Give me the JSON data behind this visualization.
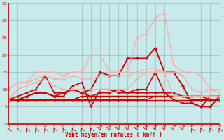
{
  "xlabel": "Vent moyen/en rafales ( km/h )",
  "xlim": [
    0,
    23
  ],
  "ylim": [
    0,
    35
  ],
  "yticks": [
    0,
    5,
    10,
    15,
    20,
    25,
    30,
    35
  ],
  "xticks": [
    0,
    1,
    2,
    3,
    4,
    5,
    6,
    7,
    8,
    9,
    10,
    11,
    12,
    13,
    14,
    15,
    16,
    17,
    18,
    19,
    20,
    21,
    22,
    23
  ],
  "bg_color": "#c8eaea",
  "grid_color": "#a0b8b8",
  "series": [
    {
      "y": [
        7,
        7,
        7,
        7,
        7,
        7,
        7,
        7,
        7,
        7,
        7,
        7,
        7,
        7,
        7,
        7,
        7,
        7,
        7,
        7,
        7,
        7,
        7,
        7
      ],
      "color": "#cc0000",
      "lw": 1.0,
      "marker": "D",
      "ms": 1.5
    },
    {
      "y": [
        7,
        7,
        7,
        7,
        7,
        7,
        7,
        7,
        7,
        7,
        7,
        7,
        7,
        7,
        7,
        7,
        8,
        8,
        8,
        8,
        7,
        7,
        7,
        7
      ],
      "color": "#cc0000",
      "lw": 1.0,
      "marker": "D",
      "ms": 1.5
    },
    {
      "y": [
        7,
        7,
        7,
        7,
        7,
        7,
        7,
        7,
        8,
        8,
        8,
        8,
        8,
        8,
        8,
        8,
        8,
        8,
        8,
        8,
        8,
        8,
        7,
        7
      ],
      "color": "#cc0000",
      "lw": 1.2,
      "marker": "^",
      "ms": 1.8
    },
    {
      "y": [
        7,
        7,
        8,
        9,
        9,
        8,
        8,
        11,
        12,
        5,
        10,
        10,
        9,
        9,
        9,
        9,
        9,
        9,
        9,
        8,
        8,
        8,
        8,
        8
      ],
      "color": "#cc0000",
      "lw": 1.2,
      "marker": "^",
      "ms": 2.0
    },
    {
      "y": [
        7,
        8,
        9,
        10,
        14,
        9,
        9,
        10,
        9,
        8,
        9,
        9,
        10,
        9,
        10,
        10,
        15,
        9,
        7,
        6,
        6,
        5,
        8,
        8
      ],
      "color": "#cc0000",
      "lw": 1.2,
      "marker": "D",
      "ms": 2.0
    },
    {
      "y": [
        7,
        7,
        8,
        9,
        9,
        8,
        9,
        10,
        9,
        10,
        15,
        14,
        14,
        19,
        19,
        19,
        22,
        15,
        15,
        11,
        6,
        5,
        5,
        8
      ],
      "color": "#cc0000",
      "lw": 1.4,
      "marker": "D",
      "ms": 2.5
    },
    {
      "y": [
        7,
        10,
        11,
        12,
        13,
        11,
        10,
        10,
        10,
        10,
        10,
        10,
        10,
        10,
        13,
        15,
        15,
        15,
        8,
        8,
        8,
        8,
        8,
        8
      ],
      "color": "#ffaaaa",
      "lw": 1.0,
      "marker": "D",
      "ms": 2.0
    },
    {
      "y": [
        10,
        12,
        12,
        13,
        14,
        13,
        13,
        14,
        13,
        13,
        14,
        14,
        14,
        14,
        15,
        16,
        16,
        15,
        15,
        14,
        10,
        9,
        10,
        9
      ],
      "color": "#ffaaaa",
      "lw": 1.0,
      "marker": "D",
      "ms": 2.0
    },
    {
      "y": [
        10,
        12,
        12,
        15,
        15,
        15,
        14,
        15,
        15,
        20,
        20,
        15,
        15,
        15,
        25,
        26,
        31,
        32,
        17,
        15,
        15,
        14,
        10,
        10
      ],
      "color": "#ffaaaa",
      "lw": 1.0,
      "marker": "D",
      "ms": 2.0
    }
  ],
  "arrows": [
    225,
    225,
    225,
    225,
    225,
    225,
    225,
    225,
    225,
    225,
    45,
    45,
    45,
    45,
    45,
    45,
    45,
    45,
    45,
    45,
    225,
    225,
    225,
    225
  ]
}
